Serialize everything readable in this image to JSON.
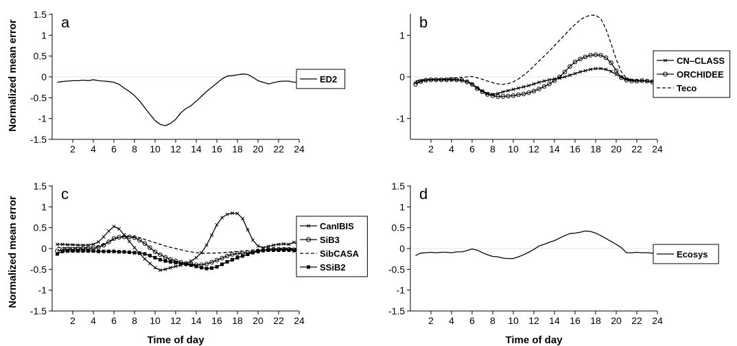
{
  "figure": {
    "ylabel": "Normalized mean error",
    "xlabel": "Time of day"
  },
  "chart_data": [
    {
      "type": "line",
      "panel": "a",
      "xlim": [
        0,
        24
      ],
      "ylim": [
        -1.5,
        1.5
      ],
      "xticks": [
        "2",
        "4",
        "6",
        "8",
        "10",
        "12",
        "14",
        "16",
        "18",
        "20",
        "22",
        "24"
      ],
      "yticks": [
        "1.5",
        "1",
        "0.5",
        "0",
        "-0.5",
        "-1",
        "-1.5"
      ],
      "ylabel": "Normalized mean error",
      "xlabel": "",
      "legend_position": "right",
      "zero_line": true,
      "series": [
        {
          "name": "ED2",
          "dash": "solid",
          "marker": "none",
          "x": [
            0.5,
            1,
            1.5,
            2,
            2.5,
            3,
            3.5,
            4,
            4.5,
            5,
            5.5,
            6,
            6.5,
            7,
            7.5,
            8,
            8.5,
            9,
            9.5,
            10,
            10.5,
            11,
            11.5,
            12,
            12.5,
            13,
            13.5,
            14,
            14.5,
            15,
            15.5,
            16,
            16.5,
            17,
            17.5,
            18,
            18.5,
            19,
            19.5,
            20,
            20.5,
            21,
            21.5,
            22,
            22.5,
            23,
            23.5,
            24
          ],
          "y": [
            -0.13,
            -0.11,
            -0.1,
            -0.09,
            -0.09,
            -0.08,
            -0.09,
            -0.07,
            -0.09,
            -0.1,
            -0.11,
            -0.13,
            -0.18,
            -0.27,
            -0.35,
            -0.45,
            -0.58,
            -0.74,
            -0.9,
            -1.05,
            -1.14,
            -1.17,
            -1.12,
            -1.02,
            -0.86,
            -0.76,
            -0.69,
            -0.58,
            -0.47,
            -0.35,
            -0.25,
            -0.15,
            -0.05,
            0.02,
            0.03,
            0.05,
            0.07,
            0.06,
            -0.01,
            -0.09,
            -0.13,
            -0.17,
            -0.14,
            -0.11,
            -0.1,
            -0.1,
            -0.13,
            -0.12
          ]
        }
      ]
    },
    {
      "type": "line",
      "panel": "b",
      "xlim": [
        0,
        24
      ],
      "ylim": [
        -1.5,
        1.5
      ],
      "xticks": [
        "2",
        "4",
        "6",
        "8",
        "10",
        "12",
        "14",
        "16",
        "18",
        "20",
        "22",
        "24"
      ],
      "yticks": [
        "1",
        "0",
        "-1"
      ],
      "xlabel": "",
      "legend_position": "right",
      "zero_line": true,
      "series": [
        {
          "name": "CN–CLASS",
          "dash": "solid",
          "marker": "x",
          "x": [
            0.5,
            1,
            1.5,
            2,
            2.5,
            3,
            3.5,
            4,
            4.5,
            5,
            5.5,
            6,
            6.5,
            7,
            7.5,
            8,
            8.5,
            9,
            9.5,
            10,
            10.5,
            11,
            11.5,
            12,
            12.5,
            13,
            13.5,
            14,
            14.5,
            15,
            15.5,
            16,
            16.5,
            17,
            17.5,
            18,
            18.5,
            19,
            19.5,
            20,
            20.5,
            21,
            21.5,
            22,
            22.5,
            23,
            23.5,
            24
          ],
          "y": [
            -0.14,
            -0.1,
            -0.08,
            -0.07,
            -0.07,
            -0.07,
            -0.07,
            -0.07,
            -0.07,
            -0.08,
            -0.11,
            -0.17,
            -0.26,
            -0.34,
            -0.4,
            -0.42,
            -0.4,
            -0.36,
            -0.33,
            -0.3,
            -0.27,
            -0.24,
            -0.21,
            -0.17,
            -0.13,
            -0.1,
            -0.07,
            -0.05,
            -0.03,
            0.0,
            0.04,
            0.08,
            0.12,
            0.15,
            0.18,
            0.2,
            0.2,
            0.18,
            0.13,
            0.06,
            0.0,
            -0.05,
            -0.08,
            -0.09,
            -0.09,
            -0.1,
            -0.11,
            -0.12
          ]
        },
        {
          "name": "ORCHIDEE",
          "dash": "solid",
          "marker": "o",
          "x": [
            0.5,
            1,
            1.5,
            2,
            2.5,
            3,
            3.5,
            4,
            4.5,
            5,
            5.5,
            6,
            6.5,
            7,
            7.5,
            8,
            8.5,
            9,
            9.5,
            10,
            10.5,
            11,
            11.5,
            12,
            12.5,
            13,
            13.5,
            14,
            14.5,
            15,
            15.5,
            16,
            16.5,
            17,
            17.5,
            18,
            18.5,
            19,
            19.5,
            20,
            20.5,
            21,
            21.5,
            22,
            22.5,
            23,
            23.5,
            24
          ],
          "y": [
            -0.18,
            -0.11,
            -0.08,
            -0.07,
            -0.07,
            -0.07,
            -0.07,
            -0.06,
            -0.07,
            -0.08,
            -0.12,
            -0.18,
            -0.28,
            -0.36,
            -0.42,
            -0.45,
            -0.47,
            -0.47,
            -0.46,
            -0.45,
            -0.43,
            -0.41,
            -0.38,
            -0.34,
            -0.29,
            -0.23,
            -0.17,
            -0.09,
            0.0,
            0.12,
            0.25,
            0.36,
            0.43,
            0.48,
            0.52,
            0.53,
            0.52,
            0.46,
            0.34,
            0.15,
            -0.02,
            -0.08,
            -0.1,
            -0.1,
            -0.09,
            -0.1,
            -0.12,
            -0.12
          ]
        },
        {
          "name": "Teco",
          "dash": "dashed",
          "marker": "none",
          "x": [
            0.5,
            1,
            1.5,
            2,
            2.5,
            3,
            3.5,
            4,
            4.5,
            5,
            5.5,
            6,
            6.5,
            7,
            7.5,
            8,
            8.5,
            9,
            9.5,
            10,
            10.5,
            11,
            11.5,
            12,
            12.5,
            13,
            13.5,
            14,
            14.5,
            15,
            15.5,
            16,
            16.5,
            17,
            17.5,
            18,
            18.5,
            19,
            19.5,
            20,
            20.5,
            21,
            21.5,
            22,
            22.5,
            23,
            23.5,
            24
          ],
          "y": [
            -0.1,
            -0.07,
            -0.06,
            -0.05,
            -0.05,
            -0.05,
            -0.04,
            -0.03,
            -0.02,
            -0.01,
            0.0,
            0.01,
            -0.02,
            -0.06,
            -0.1,
            -0.14,
            -0.17,
            -0.18,
            -0.16,
            -0.12,
            -0.05,
            0.04,
            0.14,
            0.26,
            0.38,
            0.5,
            0.62,
            0.75,
            0.88,
            1.01,
            1.14,
            1.26,
            1.37,
            1.44,
            1.48,
            1.48,
            1.4,
            1.15,
            0.8,
            0.42,
            0.12,
            -0.03,
            -0.07,
            -0.08,
            -0.09,
            -0.1,
            -0.11,
            -0.12
          ]
        }
      ]
    },
    {
      "type": "line",
      "panel": "c",
      "xlim": [
        0,
        24
      ],
      "ylim": [
        -1.5,
        1.5
      ],
      "xticks": [
        "2",
        "4",
        "6",
        "8",
        "10",
        "12",
        "14",
        "16",
        "18",
        "20",
        "22",
        "24"
      ],
      "yticks": [
        "1.5",
        "1",
        "0.5",
        "0",
        "-0.5",
        "-1",
        "-1.5"
      ],
      "ylabel": "Normalized mean error",
      "xlabel": "Time of day",
      "legend_position": "right",
      "zero_line": true,
      "series": [
        {
          "name": "CanIBIS",
          "dash": "solid",
          "marker": "x",
          "x": [
            0.5,
            1,
            1.5,
            2,
            2.5,
            3,
            3.5,
            4,
            4.5,
            5,
            5.5,
            6,
            6.5,
            7,
            7.5,
            8,
            8.5,
            9,
            9.5,
            10,
            10.5,
            11,
            11.5,
            12,
            12.5,
            13,
            13.5,
            14,
            14.5,
            15,
            15.5,
            16,
            16.5,
            17,
            17.5,
            18,
            18.5,
            19,
            19.5,
            20,
            20.5,
            21,
            21.5,
            22,
            22.5,
            23,
            23.5,
            24
          ],
          "y": [
            0.1,
            0.1,
            0.09,
            0.09,
            0.08,
            0.08,
            0.08,
            0.1,
            0.16,
            0.28,
            0.42,
            0.53,
            0.47,
            0.33,
            0.17,
            0.02,
            -0.12,
            -0.25,
            -0.36,
            -0.46,
            -0.52,
            -0.5,
            -0.46,
            -0.43,
            -0.4,
            -0.36,
            -0.3,
            -0.22,
            -0.1,
            0.08,
            0.32,
            0.57,
            0.74,
            0.82,
            0.85,
            0.84,
            0.72,
            0.45,
            0.2,
            0.06,
            0.02,
            0.05,
            0.08,
            0.1,
            0.11,
            0.1,
            0.15,
            0.08
          ]
        },
        {
          "name": "SiB3",
          "dash": "solid",
          "marker": "o",
          "x": [
            0.5,
            1,
            1.5,
            2,
            2.5,
            3,
            3.5,
            4,
            4.5,
            5,
            5.5,
            6,
            6.5,
            7,
            7.5,
            8,
            8.5,
            9,
            9.5,
            10,
            10.5,
            11,
            11.5,
            12,
            12.5,
            13,
            13.5,
            14,
            14.5,
            15,
            15.5,
            16,
            16.5,
            17,
            17.5,
            18,
            18.5,
            19,
            19.5,
            20,
            20.5,
            21,
            21.5,
            22,
            22.5,
            23,
            23.5,
            24
          ],
          "y": [
            -0.06,
            -0.03,
            -0.02,
            -0.02,
            -0.02,
            -0.01,
            -0.01,
            0.0,
            0.03,
            0.08,
            0.16,
            0.24,
            0.27,
            0.28,
            0.28,
            0.26,
            0.2,
            0.12,
            0.02,
            -0.08,
            -0.15,
            -0.21,
            -0.26,
            -0.3,
            -0.33,
            -0.36,
            -0.38,
            -0.39,
            -0.39,
            -0.37,
            -0.33,
            -0.28,
            -0.23,
            -0.18,
            -0.14,
            -0.12,
            -0.11,
            -0.1,
            -0.08,
            -0.06,
            -0.04,
            -0.03,
            -0.02,
            -0.02,
            -0.02,
            -0.02,
            -0.03,
            -0.04
          ]
        },
        {
          "name": "SibCASA",
          "dash": "dashed",
          "marker": "none",
          "x": [
            0.5,
            1,
            1.5,
            2,
            2.5,
            3,
            3.5,
            4,
            4.5,
            5,
            5.5,
            6,
            6.5,
            7,
            7.5,
            8,
            8.5,
            9,
            9.5,
            10,
            10.5,
            11,
            11.5,
            12,
            12.5,
            13,
            13.5,
            14,
            14.5,
            15,
            15.5,
            16,
            16.5,
            17,
            17.5,
            18,
            18.5,
            19,
            19.5,
            20,
            20.5,
            21,
            21.5,
            22,
            22.5,
            23,
            23.5,
            24
          ],
          "y": [
            0.03,
            0.02,
            0.02,
            0.02,
            0.02,
            0.02,
            0.03,
            0.04,
            0.06,
            0.1,
            0.16,
            0.22,
            0.27,
            0.29,
            0.29,
            0.28,
            0.26,
            0.22,
            0.18,
            0.14,
            0.1,
            0.06,
            0.03,
            0.0,
            -0.03,
            -0.06,
            -0.08,
            -0.1,
            -0.11,
            -0.11,
            -0.11,
            -0.11,
            -0.1,
            -0.09,
            -0.08,
            -0.07,
            -0.06,
            -0.05,
            -0.04,
            -0.03,
            -0.02,
            -0.01,
            0.0,
            0.0,
            0.01,
            0.01,
            0.0,
            0.0
          ]
        },
        {
          "name": "SSiB2",
          "dash": "solid",
          "marker": "s",
          "x": [
            0.5,
            1,
            1.5,
            2,
            2.5,
            3,
            3.5,
            4,
            4.5,
            5,
            5.5,
            6,
            6.5,
            7,
            7.5,
            8,
            8.5,
            9,
            9.5,
            10,
            10.5,
            11,
            11.5,
            12,
            12.5,
            13,
            13.5,
            14,
            14.5,
            15,
            15.5,
            16,
            16.5,
            17,
            17.5,
            18,
            18.5,
            19,
            19.5,
            20,
            20.5,
            21,
            21.5,
            22,
            22.5,
            23,
            23.5,
            24
          ],
          "y": [
            -0.13,
            -0.07,
            -0.06,
            -0.06,
            -0.06,
            -0.06,
            -0.06,
            -0.06,
            -0.07,
            -0.07,
            -0.07,
            -0.07,
            -0.08,
            -0.08,
            -0.09,
            -0.1,
            -0.11,
            -0.13,
            -0.17,
            -0.22,
            -0.27,
            -0.3,
            -0.32,
            -0.34,
            -0.36,
            -0.38,
            -0.4,
            -0.43,
            -0.46,
            -0.48,
            -0.47,
            -0.44,
            -0.38,
            -0.32,
            -0.27,
            -0.22,
            -0.18,
            -0.14,
            -0.1,
            -0.07,
            -0.05,
            -0.04,
            -0.04,
            -0.04,
            -0.04,
            -0.04,
            -0.05,
            -0.06
          ]
        }
      ]
    },
    {
      "type": "line",
      "panel": "d",
      "xlim": [
        0,
        24
      ],
      "ylim": [
        -1.5,
        1.5
      ],
      "xticks": [
        "2",
        "4",
        "6",
        "8",
        "10",
        "12",
        "14",
        "16",
        "18",
        "20",
        "22",
        "24"
      ],
      "yticks": [
        "1.5",
        "1",
        "0.5",
        "0",
        "-0.5",
        "-1",
        "-1.5"
      ],
      "xlabel": "Time of day",
      "legend_position": "right",
      "zero_line": true,
      "series": [
        {
          "name": "Ecosys",
          "dash": "solid",
          "marker": "none",
          "x": [
            0.5,
            1,
            1.5,
            2,
            2.5,
            3,
            3.5,
            4,
            4.5,
            5,
            5.5,
            6,
            6.5,
            7,
            7.5,
            8,
            8.5,
            9,
            9.5,
            10,
            10.5,
            11,
            11.5,
            12,
            12.5,
            13,
            13.5,
            14,
            14.5,
            15,
            15.5,
            16,
            16.5,
            17,
            17.5,
            18,
            18.5,
            19,
            19.5,
            20,
            20.5,
            21,
            21.5,
            22,
            22.5,
            23,
            23.5,
            24
          ],
          "y": [
            -0.17,
            -0.11,
            -0.1,
            -0.09,
            -0.1,
            -0.09,
            -0.09,
            -0.1,
            -0.08,
            -0.08,
            -0.05,
            -0.01,
            -0.04,
            -0.1,
            -0.15,
            -0.19,
            -0.2,
            -0.23,
            -0.24,
            -0.24,
            -0.2,
            -0.15,
            -0.09,
            -0.02,
            0.06,
            0.1,
            0.15,
            0.19,
            0.25,
            0.31,
            0.36,
            0.37,
            0.39,
            0.42,
            0.41,
            0.37,
            0.31,
            0.24,
            0.17,
            0.1,
            0.02,
            -0.1,
            -0.1,
            -0.09,
            -0.1,
            -0.1,
            -0.11,
            -0.13
          ]
        }
      ]
    }
  ]
}
